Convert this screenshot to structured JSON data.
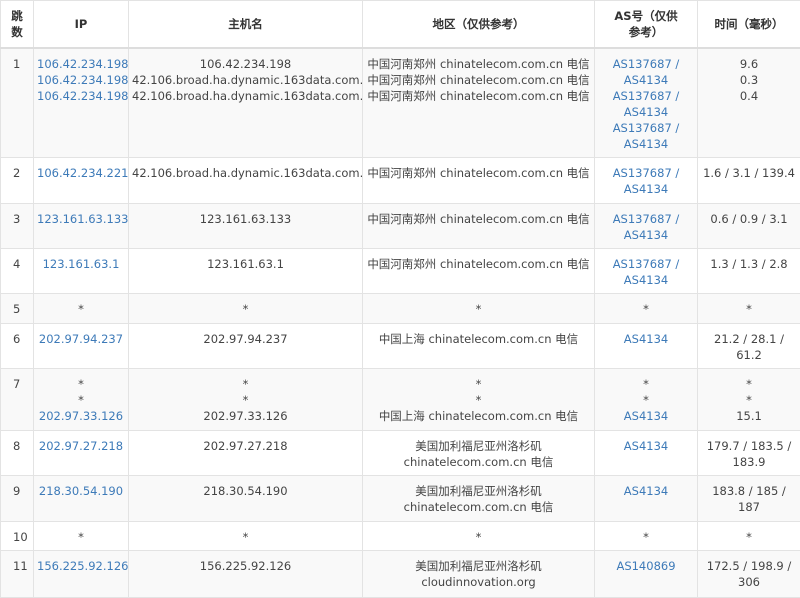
{
  "colors": {
    "link": "#3d7ab8",
    "text": "#444444",
    "stripe": "#f9f9f9"
  },
  "headers": [
    "跳数",
    "IP",
    "主机名",
    "地区（仅供参考）",
    "AS号（仅供参考）",
    "时间（毫秒）"
  ],
  "rows": [
    {
      "hop": "1",
      "ip": [
        "106.42.234.198",
        "106.42.234.198",
        "106.42.234.198"
      ],
      "host": [
        "106.42.234.198",
        "42.106.broad.ha.dynamic.163data.com.cn",
        "42.106.broad.ha.dynamic.163data.com.cn"
      ],
      "region": [
        "中国河南郑州 chinatelecom.com.cn 电信",
        "中国河南郑州 chinatelecom.com.cn 电信",
        "中国河南郑州 chinatelecom.com.cn 电信"
      ],
      "as": [
        "AS137687 / AS4134",
        "AS137687 / AS4134",
        "AS137687 / AS4134"
      ],
      "time": [
        "9.6",
        "0.3",
        "0.4"
      ]
    },
    {
      "hop": "2",
      "ip": [
        "106.42.234.221"
      ],
      "host": [
        "42.106.broad.ha.dynamic.163data.com.cn"
      ],
      "region": [
        "中国河南郑州 chinatelecom.com.cn 电信"
      ],
      "as": [
        "AS137687 / AS4134"
      ],
      "time": [
        "1.6 / 3.1 / 139.4"
      ]
    },
    {
      "hop": "3",
      "ip": [
        "123.161.63.133"
      ],
      "host": [
        "123.161.63.133"
      ],
      "region": [
        "中国河南郑州 chinatelecom.com.cn 电信"
      ],
      "as": [
        "AS137687 / AS4134"
      ],
      "time": [
        "0.6 / 0.9 / 3.1"
      ]
    },
    {
      "hop": "4",
      "ip": [
        "123.161.63.1"
      ],
      "host": [
        "123.161.63.1"
      ],
      "region": [
        "中国河南郑州 chinatelecom.com.cn 电信"
      ],
      "as": [
        "AS137687 / AS4134"
      ],
      "time": [
        "1.3 / 1.3 / 2.8"
      ]
    },
    {
      "hop": "5",
      "ip": [
        "*"
      ],
      "host": [
        "*"
      ],
      "region": [
        "*"
      ],
      "as": [
        "*"
      ],
      "time": [
        "*"
      ]
    },
    {
      "hop": "6",
      "ip": [
        "202.97.94.237"
      ],
      "host": [
        "202.97.94.237"
      ],
      "region": [
        "中国上海 chinatelecom.com.cn 电信"
      ],
      "as": [
        "AS4134"
      ],
      "time": [
        "21.2 / 28.1 / 61.2"
      ]
    },
    {
      "hop": "7",
      "ip": [
        "*",
        "*",
        "202.97.33.126"
      ],
      "host": [
        "*",
        "*",
        "202.97.33.126"
      ],
      "region": [
        "*",
        "*",
        "中国上海 chinatelecom.com.cn 电信"
      ],
      "as": [
        "*",
        "*",
        "AS4134"
      ],
      "time": [
        "*",
        "*",
        "15.1"
      ]
    },
    {
      "hop": "8",
      "ip": [
        "202.97.27.218"
      ],
      "host": [
        "202.97.27.218"
      ],
      "region": [
        "美国加利福尼亚州洛杉矶 chinatelecom.com.cn 电信"
      ],
      "as": [
        "AS4134"
      ],
      "time": [
        "179.7 / 183.5 / 183.9"
      ]
    },
    {
      "hop": "9",
      "ip": [
        "218.30.54.190"
      ],
      "host": [
        "218.30.54.190"
      ],
      "region": [
        "美国加利福尼亚州洛杉矶 chinatelecom.com.cn 电信"
      ],
      "as": [
        "AS4134"
      ],
      "time": [
        "183.8 / 185 / 187"
      ]
    },
    {
      "hop": "10",
      "ip": [
        "*"
      ],
      "host": [
        "*"
      ],
      "region": [
        "*"
      ],
      "as": [
        "*"
      ],
      "time": [
        "*"
      ]
    },
    {
      "hop": "11",
      "ip": [
        "156.225.92.126"
      ],
      "host": [
        "156.225.92.126"
      ],
      "region": [
        "美国加利福尼亚州洛杉矶 cloudinnovation.org"
      ],
      "as": [
        "AS140869"
      ],
      "time": [
        "172.5 / 198.9 / 306"
      ]
    }
  ]
}
